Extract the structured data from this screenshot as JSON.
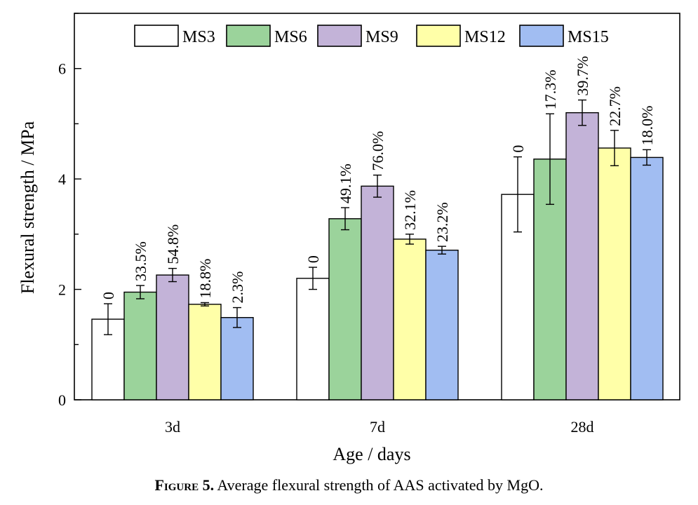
{
  "chart_data": {
    "type": "bar",
    "categories": [
      "3d",
      "7d",
      "28d"
    ],
    "xlabel": "Age / days",
    "ylabel": "Flexural strength / MPa",
    "ylim": [
      0,
      7
    ],
    "yticks": [
      0,
      2,
      4,
      6
    ],
    "legend_position": "top",
    "grid": false,
    "series": [
      {
        "name": "MS3",
        "color": "#ffffff",
        "values": [
          1.46,
          2.2,
          3.72
        ],
        "errors": [
          0.28,
          0.2,
          0.68
        ],
        "labels": [
          "0",
          "0",
          "0"
        ]
      },
      {
        "name": "MS6",
        "color": "#9bd39b",
        "values": [
          1.95,
          3.28,
          4.36
        ],
        "errors": [
          0.12,
          0.2,
          0.82
        ],
        "labels": [
          "33.5%",
          "49.1%",
          "17.3%"
        ]
      },
      {
        "name": "MS9",
        "color": "#c3b3d8",
        "values": [
          2.26,
          3.87,
          5.2
        ],
        "errors": [
          0.12,
          0.2,
          0.23
        ],
        "labels": [
          "54.8%",
          "76.0%",
          "39.7%"
        ]
      },
      {
        "name": "MS12",
        "color": "#ffffa8",
        "values": [
          1.73,
          2.91,
          4.56
        ],
        "errors": [
          0.03,
          0.09,
          0.32
        ],
        "labels": [
          "18.8%",
          "32.1%",
          "22.7%"
        ]
      },
      {
        "name": "MS15",
        "color": "#a1bdf2",
        "values": [
          1.49,
          2.71,
          4.39
        ],
        "errors": [
          0.18,
          0.07,
          0.14
        ],
        "labels": [
          "2.3%",
          "23.2%",
          "18.0%"
        ]
      }
    ]
  },
  "caption": {
    "figure_label": "Figure 5.",
    "text": " Average flexural strength of AAS activated by MgO."
  }
}
